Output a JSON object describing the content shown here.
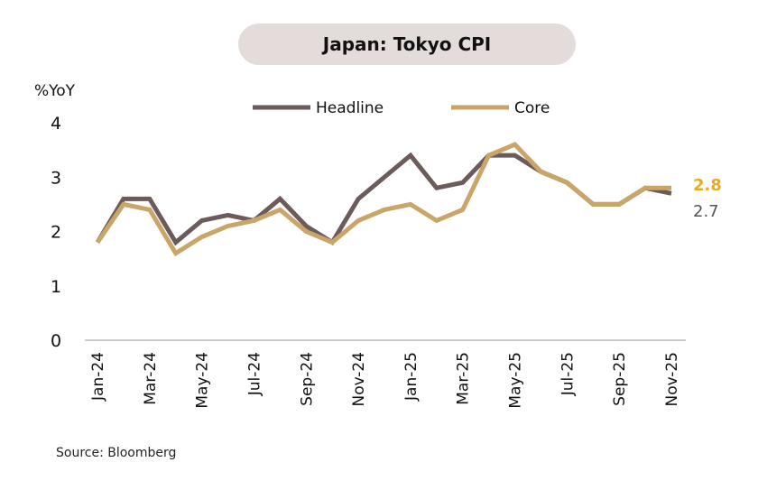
{
  "chart_data": {
    "type": "line",
    "title": "Japan: Tokyo CPI",
    "ylabel": "%YoY",
    "xlabel": "",
    "ylim": [
      0,
      4
    ],
    "yticks": [
      0,
      1,
      2,
      3,
      4
    ],
    "grid": false,
    "legend_position": "top",
    "x": [
      "Jan-24",
      "Feb-24",
      "Mar-24",
      "Apr-24",
      "May-24",
      "Jun-24",
      "Jul-24",
      "Aug-24",
      "Sep-24",
      "Oct-24",
      "Nov-24",
      "Dec-24",
      "Jan-25",
      "Feb-25",
      "Mar-25",
      "Apr-25",
      "May-25",
      "Jun-25",
      "Jul-25",
      "Aug-25",
      "Sep-25",
      "Oct-25",
      "Nov-25"
    ],
    "xtick_labels": [
      "Jan-24",
      "Mar-24",
      "May-24",
      "Jul-24",
      "Sep-24",
      "Nov-24",
      "Jan-25",
      "Mar-25",
      "May-25",
      "Jul-25",
      "Sep-25",
      "Nov-25"
    ],
    "series": [
      {
        "name": "Headline",
        "color": "#6b5b5b",
        "values": [
          1.8,
          2.6,
          2.6,
          1.8,
          2.2,
          2.3,
          2.2,
          2.6,
          2.1,
          1.8,
          2.6,
          3.0,
          3.4,
          2.8,
          2.9,
          3.4,
          3.4,
          3.1,
          2.9,
          2.5,
          2.5,
          2.8,
          2.7
        ],
        "end_label": "2.7",
        "end_label_color": "#555555"
      },
      {
        "name": "Core",
        "color": "#c9a668",
        "values": [
          1.8,
          2.5,
          2.4,
          1.6,
          1.9,
          2.1,
          2.2,
          2.4,
          2.0,
          1.8,
          2.2,
          2.4,
          2.5,
          2.2,
          2.4,
          3.4,
          3.6,
          3.1,
          2.9,
          2.5,
          2.5,
          2.8,
          2.8
        ],
        "end_label": "2.8",
        "end_label_color": "#e8ac1c"
      }
    ],
    "source": "Source: Bloomberg"
  }
}
